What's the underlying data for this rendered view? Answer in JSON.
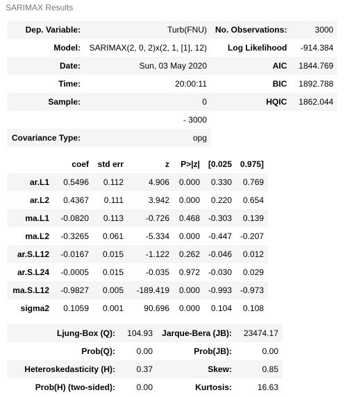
{
  "caption": "SARIMAX Results",
  "summary": {
    "rows": [
      {
        "l1": "Dep. Variable:",
        "v1": "Turb(FNU)",
        "l2": "No. Observations:",
        "v2": "3000"
      },
      {
        "l1": "Model:",
        "v1": "SARIMAX(2, 0, 2)x(2, 1, [1], 12)",
        "l2": "Log Likelihood",
        "v2": "-914.384"
      },
      {
        "l1": "Date:",
        "v1": "Sun, 03 May 2020",
        "l2": "AIC",
        "v2": "1844.769"
      },
      {
        "l1": "Time:",
        "v1": "20:00:11",
        "l2": "BIC",
        "v2": "1892.788"
      },
      {
        "l1": "Sample:",
        "v1": "0",
        "l2": "HQIC",
        "v2": "1862.044"
      },
      {
        "l1": "",
        "v1": "- 3000",
        "l2": "",
        "v2": ""
      },
      {
        "l1": "Covariance Type:",
        "v1": "opg",
        "l2": "",
        "v2": ""
      }
    ]
  },
  "coef": {
    "headers": [
      "",
      "coef",
      "std err",
      "z",
      "P>|z|",
      "[0.025",
      "0.975]"
    ],
    "rows": [
      [
        "ar.L1",
        "0.5496",
        "0.112",
        "4.906",
        "0.000",
        "0.330",
        "0.769"
      ],
      [
        "ar.L2",
        "0.4367",
        "0.111",
        "3.942",
        "0.000",
        "0.220",
        "0.654"
      ],
      [
        "ma.L1",
        "-0.0820",
        "0.113",
        "-0.726",
        "0.468",
        "-0.303",
        "0.139"
      ],
      [
        "ma.L2",
        "-0.3265",
        "0.061",
        "-5.334",
        "0.000",
        "-0.447",
        "-0.207"
      ],
      [
        "ar.S.L12",
        "-0.0167",
        "0.015",
        "-1.122",
        "0.262",
        "-0.046",
        "0.012"
      ],
      [
        "ar.S.L24",
        "-0.0005",
        "0.015",
        "-0.035",
        "0.972",
        "-0.030",
        "0.029"
      ],
      [
        "ma.S.L12",
        "-0.9827",
        "0.005",
        "-189.419",
        "0.000",
        "-0.993",
        "-0.973"
      ],
      [
        "sigma2",
        "0.1059",
        "0.001",
        "90.696",
        "0.000",
        "0.104",
        "0.108"
      ]
    ]
  },
  "diagnostics": {
    "rows": [
      {
        "l1": "Ljung-Box (Q):",
        "v1": "104.93",
        "l2": "Jarque-Bera (JB):",
        "v2": "23474.17"
      },
      {
        "l1": "Prob(Q):",
        "v1": "0.00",
        "l2": "Prob(JB):",
        "v2": "0.00"
      },
      {
        "l1": "Heteroskedasticity (H):",
        "v1": "0.37",
        "l2": "Skew:",
        "v2": "0.85"
      },
      {
        "l1": "Prob(H) (two-sided):",
        "v1": "0.00",
        "l2": "Kurtosis:",
        "v2": "16.63"
      }
    ]
  }
}
